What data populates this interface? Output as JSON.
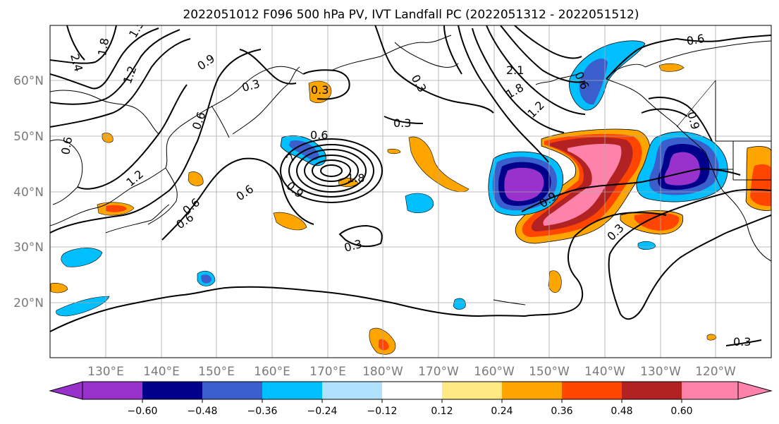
{
  "title": "2022051012 F096 500 hPa PV, IVT Landfall PC (2022051312 - 2022051512)",
  "axes": {
    "lat_labels": [
      "60°N",
      "50°N",
      "40°N",
      "30°N",
      "20°N"
    ],
    "lon_labels": [
      "130°E",
      "140°E",
      "150°E",
      "160°E",
      "170°E",
      "180°W",
      "170°W",
      "160°W",
      "150°W",
      "140°W",
      "130°W",
      "120°W"
    ],
    "grid": true
  },
  "contour_labels": [
    "2.4",
    "1.8",
    "1.5",
    "1.2",
    "0.9",
    "0.3",
    "0.3",
    "0.6",
    "0.6",
    "0.6",
    "1.2",
    "0.6",
    "0.6",
    "0.3",
    "0.3",
    "0.6",
    "2",
    "1.8",
    "0.9",
    "0.3",
    "2.1",
    "1.8",
    "1.2",
    "0.6",
    "0.9",
    "0.9",
    "0.3",
    "0.3",
    "0.6"
  ],
  "colorbar": {
    "ticks": [
      "−0.60",
      "−0.48",
      "−0.36",
      "−0.24",
      "−0.12",
      "0.12",
      "0.24",
      "0.36",
      "0.48",
      "0.60"
    ],
    "colors": [
      "#9932cc",
      "#00008b",
      "#3a5fcd",
      "#00bfff",
      "#b0e2ff",
      "#ffffff",
      "#ffe985",
      "#ffa500",
      "#ff4500",
      "#b22222",
      "#ff82ab"
    ]
  },
  "colors": {
    "neg_strong": "#9932cc",
    "neg_dark": "#00008b",
    "neg_mid": "#3a5fcd",
    "neg_light": "#00bfff",
    "neg_faint": "#b0e2ff",
    "pos_faint": "#ffe985",
    "pos_light": "#ffa500",
    "pos_mid": "#ff4500",
    "pos_dark": "#b22222",
    "pos_strong": "#ff82ab"
  }
}
